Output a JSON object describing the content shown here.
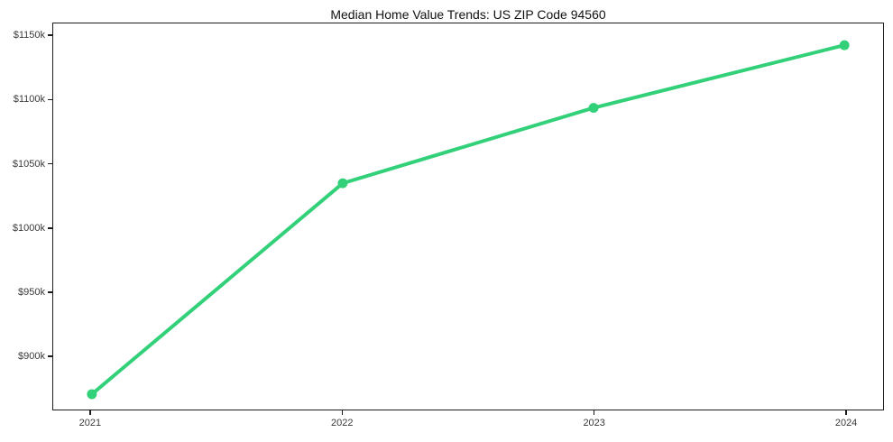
{
  "title": "Median Home Value Trends: US ZIP Code 94560",
  "colors": {
    "line": "#32d179",
    "marker": "#32d179",
    "axis": "#1c1c1c",
    "tick_label": "#3a3a3a",
    "background": "#ffffff"
  },
  "chart_data": {
    "type": "line",
    "title": "Median Home Value Trends: US ZIP Code 94560",
    "xlabel": "",
    "ylabel": "",
    "categories": [
      "2021",
      "2022",
      "2023",
      "2024"
    ],
    "x": [
      2021,
      2022,
      2023,
      2024
    ],
    "values": [
      870,
      1035,
      1094,
      1143
    ],
    "value_unit": "$k (thousands of dollars)",
    "series": [
      {
        "name": "Median home value",
        "values": [
          870,
          1035,
          1094,
          1143
        ]
      }
    ],
    "y_ticks": {
      "values": [
        900,
        950,
        1000,
        1050,
        1100,
        1150
      ],
      "labels": [
        "$900k",
        "$950k",
        "$1000k",
        "$1050k",
        "$1100k",
        "$1150k"
      ]
    },
    "ylim": [
      858,
      1160
    ],
    "xlim_index": [
      -0.15,
      3.15
    ],
    "grid": false,
    "legend": false,
    "line_width": 4,
    "marker_radius": 5.5
  }
}
